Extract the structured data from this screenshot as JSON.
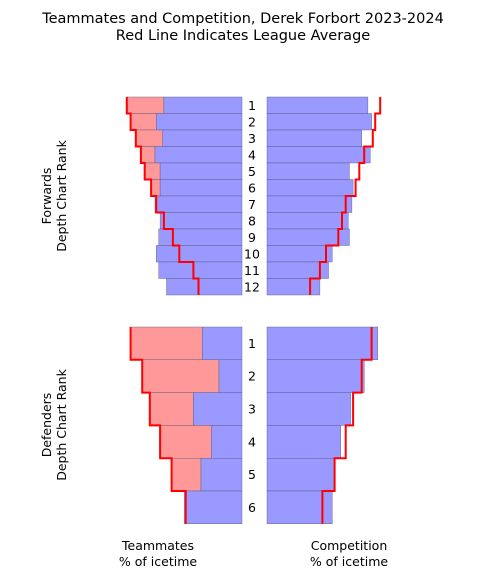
{
  "title_line1": "Teammates and Competition, Derek Forbort 2023-2024",
  "title_line2": "Red Line Indicates League Average",
  "forwards_label_line1": "Forwards",
  "forwards_label_line2": "Depth Chart Rank",
  "defenders_label_line1": "Defenders",
  "defenders_label_line2": "Depth Chart Rank",
  "teammates_label_line1": "Teammates",
  "teammates_label_line2": "% of icetime",
  "competition_label_line1": "Competition",
  "competition_label_line2": "% of icetime",
  "colors": {
    "player_bar": "#9999ff",
    "above_average_teammate": "#ff9999",
    "league_average_line": "#ff0000",
    "bar_edge": "#555577"
  },
  "chart_data": [
    {
      "type": "bar",
      "panel": "forwards-teammates",
      "orientation": "horizontal-leftward",
      "categories": [
        "1",
        "2",
        "3",
        "4",
        "5",
        "6",
        "7",
        "8",
        "9",
        "10",
        "11",
        "12"
      ],
      "player_values": [
        0.61,
        0.67,
        0.62,
        0.68,
        0.64,
        0.64,
        0.68,
        0.64,
        0.65,
        0.67,
        0.65,
        0.59
      ],
      "league_average": [
        0.9,
        0.87,
        0.83,
        0.79,
        0.76,
        0.71,
        0.67,
        0.61,
        0.54,
        0.49,
        0.38,
        0.34
      ],
      "xlim": [
        0,
        1
      ]
    },
    {
      "type": "bar",
      "panel": "forwards-competition",
      "orientation": "horizontal-rightward",
      "categories": [
        "1",
        "2",
        "3",
        "4",
        "5",
        "6",
        "7",
        "8",
        "9",
        "10",
        "11",
        "12"
      ],
      "player_values": [
        0.82,
        0.85,
        0.77,
        0.84,
        0.67,
        0.7,
        0.69,
        0.66,
        0.67,
        0.53,
        0.5,
        0.43
      ],
      "league_average": [
        0.92,
        0.88,
        0.86,
        0.79,
        0.75,
        0.72,
        0.64,
        0.61,
        0.58,
        0.48,
        0.43,
        0.35
      ],
      "xlim": [
        0,
        1
      ]
    },
    {
      "type": "bar",
      "panel": "defenders-teammates",
      "orientation": "horizontal-leftward",
      "categories": [
        "1",
        "2",
        "3",
        "4",
        "5",
        "6"
      ],
      "player_values": [
        0.31,
        0.18,
        0.38,
        0.24,
        0.32,
        0.45
      ],
      "league_average": [
        0.87,
        0.78,
        0.72,
        0.64,
        0.55,
        0.44
      ],
      "xlim": [
        0,
        1
      ]
    },
    {
      "type": "bar",
      "panel": "defenders-competition",
      "orientation": "horizontal-rightward",
      "categories": [
        "1",
        "2",
        "3",
        "4",
        "5",
        "6"
      ],
      "player_values": [
        0.9,
        0.79,
        0.68,
        0.6,
        0.55,
        0.53
      ],
      "league_average": [
        0.85,
        0.77,
        0.7,
        0.64,
        0.55,
        0.45
      ],
      "xlim": [
        0,
        1
      ]
    }
  ]
}
